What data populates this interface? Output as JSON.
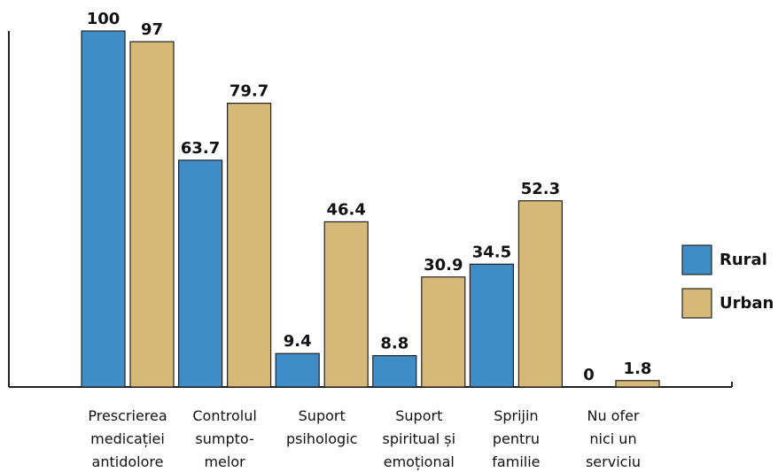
{
  "chart_data": {
    "type": "bar",
    "categories": [
      [
        "Prescrierea",
        "medicației",
        "antidolore"
      ],
      [
        "Controlul",
        "sumpto-",
        "melor"
      ],
      [
        "Suport",
        "psihologic"
      ],
      [
        "Suport",
        "spiritual și",
        "emoțional"
      ],
      [
        "Sprijin",
        "pentru",
        "familie"
      ],
      [
        "Nu ofer",
        "nici un",
        "serviciu"
      ]
    ],
    "series": [
      {
        "name": "Rural",
        "color": "#3f8dc6",
        "values": [
          100,
          63.7,
          9.4,
          8.8,
          34.5,
          0
        ]
      },
      {
        "name": "Urban",
        "color": "#d6b878",
        "values": [
          97,
          79.7,
          46.4,
          30.9,
          52.3,
          1.8
        ]
      }
    ],
    "ylim": [
      0,
      100
    ],
    "legend": "right"
  }
}
